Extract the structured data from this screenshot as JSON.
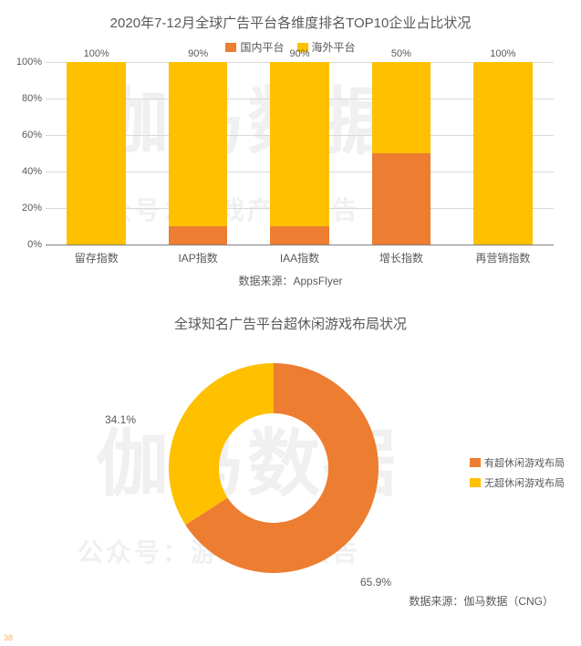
{
  "watermarks": {
    "big": "伽马数据",
    "small": "公众号：游戏产业报告"
  },
  "bar_chart": {
    "type": "bar-stacked",
    "title": "2020年7-12月全球广告平台各维度排名TOP10企业占比状况",
    "legend": [
      {
        "label": "国内平台",
        "color": "#ed7d31"
      },
      {
        "label": "海外平台",
        "color": "#ffc000"
      }
    ],
    "ylim": [
      0,
      100
    ],
    "ytick_step": 20,
    "y_suffix": "%",
    "grid_color": "#d9d9d9",
    "axis_color": "#808080",
    "background_color": "#ffffff",
    "label_fontsize": 11,
    "categories": [
      "留存指数",
      "IAP指数",
      "IAA指数",
      "增长指数",
      "再营销指数"
    ],
    "series": {
      "domestic": [
        0,
        10,
        10,
        50,
        0
      ],
      "overseas": [
        100,
        90,
        90,
        50,
        100
      ]
    },
    "bar_width": 0.58,
    "source": "数据来源：AppsFlyer"
  },
  "donut_chart": {
    "type": "donut",
    "title": "全球知名广告平台超休闲游戏布局状况",
    "slices": [
      {
        "label": "有超休闲游戏布局",
        "value": 65.9,
        "color": "#ed7d31"
      },
      {
        "label": "无超休闲游戏布局",
        "value": 34.1,
        "color": "#ffc000"
      }
    ],
    "value_labels": [
      "65.9%",
      "34.1%"
    ],
    "outer_r": 115,
    "inner_r": 60,
    "start_angle_deg": -90,
    "label_fontsize": 12,
    "source": "数据来源：伽马数据（CNG）"
  },
  "page_number": "38"
}
